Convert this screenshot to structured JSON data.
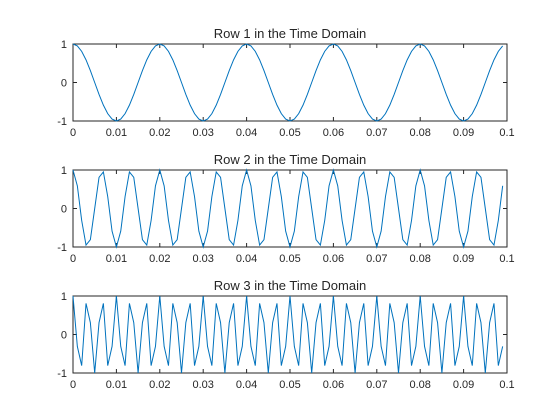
{
  "colors": {
    "line": "#0072BD",
    "axes": "#262626",
    "background": "#ffffff"
  },
  "chart_data": [
    {
      "type": "line",
      "title": "Row 1 in the Time Domain",
      "frequency_hz": 50,
      "xlim": [
        0,
        0.1
      ],
      "ylim": [
        -1,
        1
      ],
      "xticks": [
        "0",
        "0.01",
        "0.02",
        "0.03",
        "0.04",
        "0.05",
        "0.06",
        "0.07",
        "0.08",
        "0.09",
        "0.1"
      ],
      "yticks": [
        "-1",
        "0",
        "1"
      ],
      "series": [
        {
          "x_range": [
            0,
            0.099
          ],
          "sample_step": 0.001,
          "function": "cos(2*pi*50*t)"
        }
      ]
    },
    {
      "type": "line",
      "title": "Row 2 in the Time Domain",
      "frequency_hz": 150,
      "xlim": [
        0,
        0.1
      ],
      "ylim": [
        -1,
        1
      ],
      "xticks": [
        "0",
        "0.01",
        "0.02",
        "0.03",
        "0.04",
        "0.05",
        "0.06",
        "0.07",
        "0.08",
        "0.09",
        "0.1"
      ],
      "yticks": [
        "-1",
        "0",
        "1"
      ],
      "series": [
        {
          "x_range": [
            0,
            0.099
          ],
          "sample_step": 0.001,
          "function": "cos(2*pi*150*t)"
        }
      ]
    },
    {
      "type": "line",
      "title": "Row 3 in the Time Domain",
      "frequency_hz": 300,
      "xlim": [
        0,
        0.1
      ],
      "ylim": [
        -1,
        1
      ],
      "xticks": [
        "0",
        "0.01",
        "0.02",
        "0.03",
        "0.04",
        "0.05",
        "0.06",
        "0.07",
        "0.08",
        "0.09",
        "0.1"
      ],
      "yticks": [
        "-1",
        "0",
        "1"
      ],
      "series": [
        {
          "x_range": [
            0,
            0.099
          ],
          "sample_step": 0.001,
          "function": "cos(2*pi*300*t)"
        }
      ]
    }
  ]
}
